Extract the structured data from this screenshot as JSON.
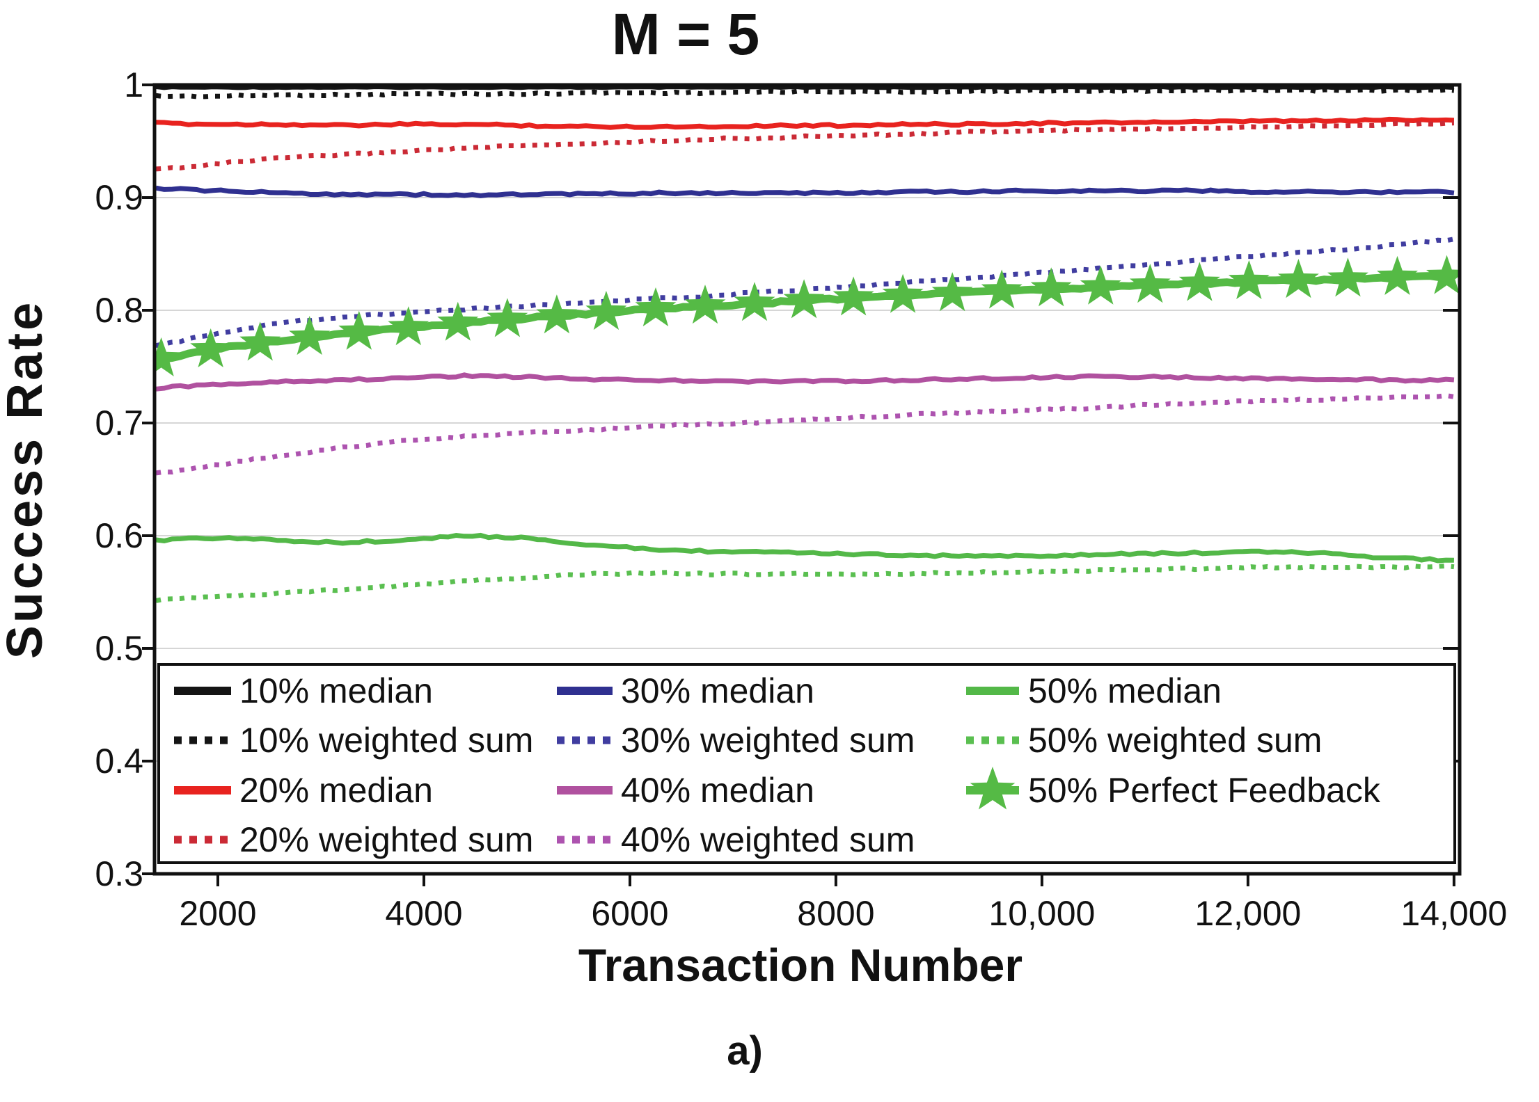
{
  "chart_data": {
    "type": "line",
    "title": "M = 5",
    "caption": "a)",
    "xlabel": "Transaction Number",
    "ylabel": "Success Rate",
    "xlim": [
      1385,
      14055
    ],
    "ylim": [
      0.3,
      1.0
    ],
    "x_ticks": [
      2000,
      4000,
      6000,
      8000,
      10000,
      12000,
      14000
    ],
    "x_tick_labels": [
      "2000",
      "4000",
      "6000",
      "8000",
      "10,000",
      "12,000",
      "14,000"
    ],
    "y_ticks": [
      1.0,
      0.9,
      0.8,
      0.7,
      0.6,
      0.5,
      0.4,
      0.3
    ],
    "y_tick_labels": [
      "1",
      "0.9",
      "0.8",
      "0.7",
      "0.6",
      "0.5",
      "0.4",
      "0.3"
    ],
    "grid_y_values": [
      0.9,
      0.8,
      0.7,
      0.6,
      0.5,
      0.4
    ],
    "grid_color": "#d6d6d6",
    "axis_color": "#111111",
    "x": [
      1400,
      2000,
      2600,
      3200,
      3800,
      4400,
      5000,
      5600,
      6200,
      6800,
      7400,
      8000,
      8600,
      9200,
      9800,
      10400,
      11000,
      11600,
      12200,
      12800,
      13400,
      14000
    ],
    "series": [
      {
        "name": "10% median",
        "color": "#141414",
        "style": "solid",
        "values": [
          0.998,
          0.998,
          0.998,
          0.998,
          0.998,
          0.998,
          0.998,
          0.998,
          0.998,
          0.998,
          0.998,
          0.998,
          0.998,
          0.998,
          0.998,
          0.998,
          0.998,
          0.998,
          0.998,
          0.998,
          0.998,
          0.998
        ]
      },
      {
        "name": "10% weighted sum",
        "color": "#141414",
        "style": "dotted",
        "values": [
          0.99,
          0.99,
          0.991,
          0.991,
          0.992,
          0.992,
          0.992,
          0.993,
          0.993,
          0.993,
          0.994,
          0.994,
          0.994,
          0.994,
          0.995,
          0.995,
          0.995,
          0.995,
          0.995,
          0.995,
          0.995,
          0.995
        ]
      },
      {
        "name": "20% median",
        "color": "#e8231f",
        "style": "solid",
        "values": [
          0.966,
          0.965,
          0.965,
          0.964,
          0.965,
          0.965,
          0.964,
          0.963,
          0.963,
          0.963,
          0.964,
          0.964,
          0.965,
          0.965,
          0.966,
          0.966,
          0.967,
          0.967,
          0.968,
          0.968,
          0.969,
          0.969
        ]
      },
      {
        "name": "20% weighted sum",
        "color": "#cb2a35",
        "style": "dotted",
        "values": [
          0.925,
          0.93,
          0.935,
          0.938,
          0.941,
          0.944,
          0.946,
          0.948,
          0.95,
          0.952,
          0.953,
          0.955,
          0.956,
          0.958,
          0.959,
          0.96,
          0.961,
          0.962,
          0.963,
          0.964,
          0.965,
          0.966
        ]
      },
      {
        "name": "30% median",
        "color": "#2f3090",
        "style": "solid",
        "values": [
          0.908,
          0.906,
          0.904,
          0.903,
          0.903,
          0.902,
          0.903,
          0.903,
          0.904,
          0.904,
          0.904,
          0.904,
          0.905,
          0.905,
          0.906,
          0.906,
          0.906,
          0.906,
          0.905,
          0.905,
          0.905,
          0.905
        ]
      },
      {
        "name": "30% weighted sum",
        "color": "#403da0",
        "style": "dotted",
        "values": [
          0.768,
          0.78,
          0.789,
          0.794,
          0.798,
          0.801,
          0.804,
          0.807,
          0.81,
          0.813,
          0.817,
          0.82,
          0.824,
          0.828,
          0.832,
          0.836,
          0.84,
          0.845,
          0.849,
          0.853,
          0.858,
          0.863
        ]
      },
      {
        "name": "40% median",
        "color": "#b0519f",
        "style": "solid",
        "values": [
          0.731,
          0.734,
          0.737,
          0.738,
          0.74,
          0.742,
          0.741,
          0.739,
          0.738,
          0.737,
          0.737,
          0.737,
          0.738,
          0.739,
          0.74,
          0.741,
          0.741,
          0.74,
          0.739,
          0.739,
          0.738,
          0.738
        ]
      },
      {
        "name": "40% weighted sum",
        "color": "#ad53af",
        "style": "dotted",
        "values": [
          0.655,
          0.663,
          0.671,
          0.678,
          0.684,
          0.688,
          0.691,
          0.694,
          0.697,
          0.699,
          0.701,
          0.704,
          0.707,
          0.709,
          0.711,
          0.713,
          0.716,
          0.718,
          0.72,
          0.721,
          0.723,
          0.724
        ]
      },
      {
        "name": "50% median",
        "color": "#53b848",
        "style": "solid",
        "values": [
          0.596,
          0.598,
          0.596,
          0.594,
          0.596,
          0.6,
          0.598,
          0.592,
          0.588,
          0.586,
          0.585,
          0.584,
          0.583,
          0.582,
          0.582,
          0.583,
          0.584,
          0.585,
          0.586,
          0.584,
          0.58,
          0.578
        ]
      },
      {
        "name": "50% weighted sum",
        "color": "#5abf50",
        "style": "dotted",
        "values": [
          0.543,
          0.546,
          0.549,
          0.552,
          0.556,
          0.56,
          0.563,
          0.566,
          0.567,
          0.566,
          0.566,
          0.566,
          0.566,
          0.567,
          0.568,
          0.569,
          0.57,
          0.571,
          0.572,
          0.572,
          0.572,
          0.573
        ]
      },
      {
        "name": "50% Perfect Feedback",
        "color": "#55ba45",
        "style": "star-line",
        "values": [
          0.756,
          0.766,
          0.773,
          0.779,
          0.784,
          0.789,
          0.793,
          0.797,
          0.801,
          0.804,
          0.807,
          0.81,
          0.813,
          0.815,
          0.818,
          0.82,
          0.822,
          0.824,
          0.826,
          0.827,
          0.829,
          0.83
        ]
      }
    ],
    "legend": {
      "position": "inside bottom, white box, 3 columns",
      "columns": [
        [
          "10% median",
          "10% weighted sum",
          "20% median",
          "20% weighted sum"
        ],
        [
          "30% median",
          "30% weighted sum",
          "40% median",
          "40% weighted sum"
        ],
        [
          "50% median",
          "50% weighted sum",
          "50% Perfect Feedback"
        ]
      ]
    }
  }
}
